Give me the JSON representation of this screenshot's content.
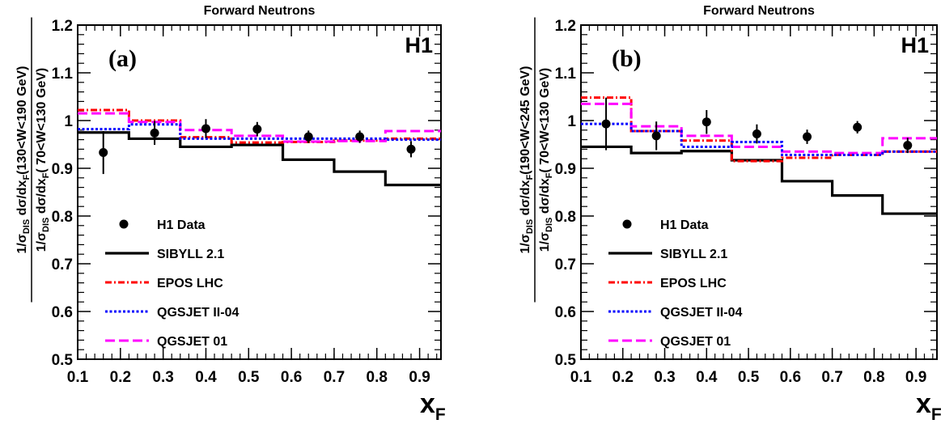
{
  "chart_data": [
    {
      "type": "line",
      "title": "Forward Neutrons",
      "experiment_label": "H1",
      "panel_label": "(a)",
      "ylabel": {
        "num_prefix": "1/σ",
        "num_sub1": "DIS",
        "num_mid": " dσ/dx",
        "num_sub2": "F",
        "num_range": "(130<W<190 GeV)",
        "den_prefix": "1/σ",
        "den_sub1": "DIS",
        "den_mid": " dσ/dx",
        "den_sub2": "F",
        "den_range": "( 70<W<130 GeV)"
      },
      "xlabel": {
        "main": "x",
        "sub": "F"
      },
      "xlim": [
        0.1,
        0.95
      ],
      "ylim": [
        0.5,
        1.2
      ],
      "xticks": [
        "0.1",
        "0.2",
        "0.3",
        "0.4",
        "0.5",
        "0.6",
        "0.7",
        "0.8",
        "0.9"
      ],
      "yticks": [
        "0.5",
        "0.6",
        "0.7",
        "0.8",
        "0.9",
        "1",
        "1.1",
        "1.2"
      ],
      "bin_edges": [
        0.1,
        0.22,
        0.34,
        0.46,
        0.58,
        0.7,
        0.82,
        0.95
      ],
      "data": {
        "name": "H1 Data",
        "x": [
          0.16,
          0.28,
          0.4,
          0.52,
          0.64,
          0.76,
          0.88
        ],
        "y": [
          0.933,
          0.974,
          0.983,
          0.982,
          0.966,
          0.966,
          0.94
        ],
        "err": [
          0.045,
          0.025,
          0.02,
          0.015,
          0.013,
          0.013,
          0.017
        ]
      },
      "series": [
        {
          "name": "SIBYLL 2.1",
          "color": "#000000",
          "style": "solid",
          "values": [
            0.975,
            0.962,
            0.945,
            0.949,
            0.918,
            0.893,
            0.865
          ]
        },
        {
          "name": "EPOS LHC",
          "color": "#ff0000",
          "style": "dashdot",
          "values": [
            1.022,
            1.0,
            0.965,
            0.954,
            0.955,
            0.958,
            0.962
          ]
        },
        {
          "name": "QGSJET II-04",
          "color": "#0000ff",
          "style": "dotted",
          "values": [
            0.982,
            0.992,
            0.962,
            0.962,
            0.962,
            0.962,
            0.96
          ]
        },
        {
          "name": "QGSJET 01",
          "color": "#ff00ff",
          "style": "dashed",
          "values": [
            1.015,
            0.997,
            0.98,
            0.968,
            0.956,
            0.957,
            0.978
          ]
        }
      ],
      "grid": false,
      "legend_position": "bottom-left"
    },
    {
      "type": "line",
      "title": "Forward Neutrons",
      "experiment_label": "H1",
      "panel_label": "(b)",
      "ylabel": {
        "num_prefix": "1/σ",
        "num_sub1": "DIS",
        "num_mid": " dσ/dx",
        "num_sub2": "F",
        "num_range": "(190<W<245 GeV)",
        "den_prefix": "1/σ",
        "den_sub1": "DIS",
        "den_mid": " dσ/dx",
        "den_sub2": "F",
        "den_range": "( 70<W<130 GeV)"
      },
      "xlabel": {
        "main": "x",
        "sub": "F"
      },
      "xlim": [
        0.1,
        0.95
      ],
      "ylim": [
        0.5,
        1.2
      ],
      "xticks": [
        "0.1",
        "0.2",
        "0.3",
        "0.4",
        "0.5",
        "0.6",
        "0.7",
        "0.8",
        "0.9"
      ],
      "yticks": [
        "0.5",
        "0.6",
        "0.7",
        "0.8",
        "0.9",
        "1",
        "1.1",
        "1.2"
      ],
      "bin_edges": [
        0.1,
        0.22,
        0.34,
        0.46,
        0.58,
        0.7,
        0.82,
        0.95
      ],
      "data": {
        "name": "H1 Data",
        "x": [
          0.16,
          0.28,
          0.4,
          0.52,
          0.64,
          0.76,
          0.88
        ],
        "y": [
          0.993,
          0.968,
          0.997,
          0.972,
          0.966,
          0.986,
          0.948
        ],
        "err": [
          0.055,
          0.03,
          0.025,
          0.02,
          0.015,
          0.013,
          0.016
        ]
      },
      "series": [
        {
          "name": "SIBYLL 2.1",
          "color": "#000000",
          "style": "solid",
          "values": [
            0.945,
            0.932,
            0.936,
            0.917,
            0.873,
            0.843,
            0.805
          ]
        },
        {
          "name": "EPOS LHC",
          "color": "#ff0000",
          "style": "dashdot",
          "values": [
            1.048,
            0.978,
            0.958,
            0.915,
            0.922,
            0.928,
            0.935
          ]
        },
        {
          "name": "QGSJET II-04",
          "color": "#0000ff",
          "style": "dotted",
          "values": [
            0.993,
            0.978,
            0.945,
            0.955,
            0.928,
            0.928,
            0.935
          ]
        },
        {
          "name": "QGSJET 01",
          "color": "#ff00ff",
          "style": "dashed",
          "values": [
            1.035,
            0.988,
            0.968,
            0.945,
            0.935,
            0.932,
            0.963
          ]
        }
      ],
      "grid": false,
      "legend_position": "bottom-left"
    }
  ]
}
